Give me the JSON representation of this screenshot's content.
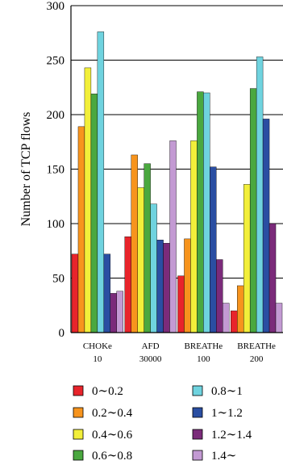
{
  "chart_data": {
    "type": "bar",
    "title": "",
    "xlabel": "",
    "ylabel": "Number of TCP flows",
    "ylim": [
      0,
      300
    ],
    "yticks": [
      "0",
      "50",
      "100",
      "150",
      "200",
      "250",
      "300"
    ],
    "grid": "horizontal",
    "legend_position": "bottom",
    "categories": [
      {
        "line1": "CHOKe",
        "line2": "10"
      },
      {
        "line1": "AFD",
        "line2": "30000"
      },
      {
        "line1": "BREATHe",
        "line2": "100"
      },
      {
        "line1": "BREATHe",
        "line2": "200"
      }
    ],
    "series": [
      {
        "name": "0∼0.2",
        "color": "#e8242b",
        "values": [
          72,
          88,
          52,
          20
        ]
      },
      {
        "name": "0.2∼0.4",
        "color": "#f7941d",
        "values": [
          189,
          163,
          86,
          43
        ]
      },
      {
        "name": "0.4∼0.6",
        "color": "#f2ef3a",
        "values": [
          243,
          133,
          176,
          136
        ]
      },
      {
        "name": "0.6∼0.8",
        "color": "#4aa83f",
        "values": [
          219,
          155,
          221,
          224
        ]
      },
      {
        "name": "0.8∼1",
        "color": "#6fd3df",
        "values": [
          276,
          118,
          220,
          253
        ]
      },
      {
        "name": "1∼1.2",
        "color": "#2a4ea2",
        "values": [
          72,
          85,
          152,
          196
        ]
      },
      {
        "name": "1.2∼1.4",
        "color": "#7b2b7a",
        "values": [
          36,
          82,
          67,
          100
        ]
      },
      {
        "name": "1.4∼",
        "color": "#c39ad3",
        "values": [
          38,
          176,
          27,
          27
        ]
      }
    ]
  }
}
